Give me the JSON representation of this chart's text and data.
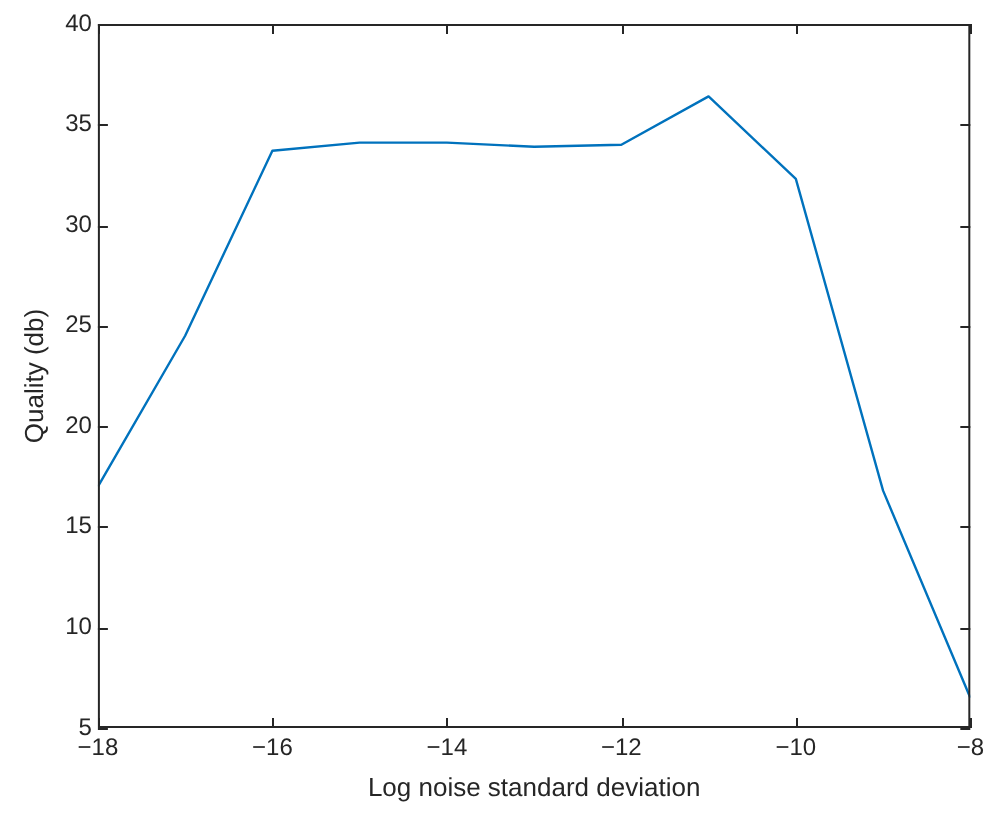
{
  "chart_data": {
    "type": "line",
    "xlabel": "Log noise standard deviation",
    "ylabel": "Quality (db)",
    "x": [
      -18,
      -17,
      -16,
      -15,
      -14,
      -13,
      -12,
      -11,
      -10,
      -9,
      -8
    ],
    "series": [
      {
        "color": "#0072bd",
        "values": [
          17.0,
          24.5,
          33.7,
          34.1,
          34.1,
          33.9,
          34.0,
          36.4,
          32.3,
          16.8,
          6.5
        ]
      }
    ],
    "xlim": [
      -18,
      -8
    ],
    "xticks": [
      -18,
      -16,
      -14,
      -12,
      -10,
      -8
    ],
    "ylim": [
      5,
      40
    ],
    "yticks": [
      5,
      10,
      15,
      20,
      25,
      30,
      35,
      40
    ],
    "grid": false,
    "legend": false,
    "marker": "none",
    "line_style": "solid"
  }
}
